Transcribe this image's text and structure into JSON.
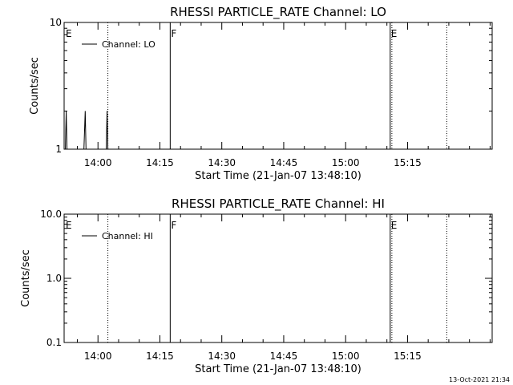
{
  "footer_timestamp": "13-Oct-2021 21:34",
  "chart_data": [
    {
      "type": "line",
      "title": "RHESSI PARTICLE_RATE Channel: LO",
      "xlabel": "Start Time (21-Jan-07 13:48:10)",
      "ylabel": "Counts/sec",
      "yscale": "log",
      "ylim": [
        1,
        10
      ],
      "yticks": [
        {
          "v": 1,
          "label": "1"
        },
        {
          "v": 10,
          "label": "10"
        }
      ],
      "xlim_minutes": [
        -8.2,
        95.5
      ],
      "xticks": [
        {
          "m": 0,
          "label": "14:00"
        },
        {
          "m": 15,
          "label": "14:15"
        },
        {
          "m": 30,
          "label": "14:30"
        },
        {
          "m": 45,
          "label": "14:45"
        },
        {
          "m": 60,
          "label": "15:00"
        },
        {
          "m": 75,
          "label": "15:15"
        }
      ],
      "legend": {
        "position": "top-left",
        "label": "Channel: LO"
      },
      "series": [
        {
          "name": "Channel: LO",
          "points": [
            [
              -8.2,
              1
            ],
            [
              -7.9,
              1
            ],
            [
              -7.7,
              2
            ],
            [
              -7.5,
              1
            ],
            [
              -3.4,
              1
            ],
            [
              -3.1,
              2
            ],
            [
              -2.9,
              1
            ],
            [
              2.0,
              1
            ],
            [
              2.2,
              2
            ],
            [
              2.4,
              1
            ],
            [
              2.6,
              1
            ]
          ]
        }
      ],
      "vlines": [
        {
          "m": 2.4,
          "style": "dotted"
        },
        {
          "m": 17.5,
          "style": "solid"
        },
        {
          "m": 70.8,
          "style": "solid"
        },
        {
          "m": 71.2,
          "style": "dotted"
        },
        {
          "m": 84.5,
          "style": "dotted"
        }
      ],
      "markers": [
        {
          "m": -8.0,
          "label": "E"
        },
        {
          "m": 17.5,
          "label": "F"
        },
        {
          "m": 70.8,
          "label": "E"
        }
      ]
    },
    {
      "type": "line",
      "title": "RHESSI PARTICLE_RATE Channel: HI",
      "xlabel": "Start Time (21-Jan-07 13:48:10)",
      "ylabel": "Counts/sec",
      "yscale": "log",
      "ylim": [
        0.1,
        10
      ],
      "yticks": [
        {
          "v": 0.1,
          "label": "0.1"
        },
        {
          "v": 1,
          "label": "1.0"
        },
        {
          "v": 10,
          "label": "10.0"
        }
      ],
      "xlim_minutes": [
        -8.2,
        95.5
      ],
      "xticks": [
        {
          "m": 0,
          "label": "14:00"
        },
        {
          "m": 15,
          "label": "14:15"
        },
        {
          "m": 30,
          "label": "14:30"
        },
        {
          "m": 45,
          "label": "14:45"
        },
        {
          "m": 60,
          "label": "15:00"
        },
        {
          "m": 75,
          "label": "15:15"
        }
      ],
      "legend": {
        "position": "top-left",
        "label": "Channel: HI"
      },
      "series": [
        {
          "name": "Channel: HI",
          "points": []
        }
      ],
      "vlines": [
        {
          "m": 2.4,
          "style": "dotted"
        },
        {
          "m": 17.5,
          "style": "solid"
        },
        {
          "m": 70.8,
          "style": "solid"
        },
        {
          "m": 71.2,
          "style": "dotted"
        },
        {
          "m": 84.5,
          "style": "dotted"
        }
      ],
      "markers": [
        {
          "m": -8.0,
          "label": "E"
        },
        {
          "m": 17.5,
          "label": "F"
        },
        {
          "m": 70.8,
          "label": "E"
        }
      ]
    }
  ]
}
